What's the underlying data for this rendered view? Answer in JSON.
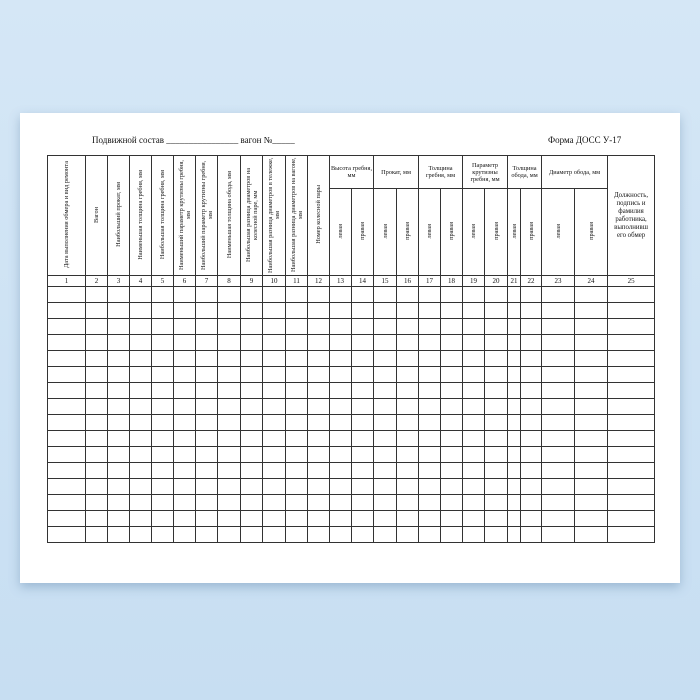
{
  "header": {
    "title": "Подвижной состав ________________ вагон №_____",
    "form_label": "Форма ДОСС У-17"
  },
  "columns": {
    "c1": "Дата выполнения обмера и вид ремонта",
    "c2": "Вагон",
    "c3": "Наибольший прокат, мм",
    "c4": "Наименьшая толщина гребня, мм",
    "c5": "Наибольшая толщина гребня, мм",
    "c6": "Наименьший параметр крутизны гребня, мм",
    "c7": "Наибольший параметр крутизны гребня, мм",
    "c8": "Наименьшая толщина обода, мм",
    "c9": "Наибольшая разница диаметров на колесной паре, мм",
    "c10": "Наибольшая разница диаметров в тележке, мм",
    "c11": "Наибольшая разница диаметров на вагоне, мм",
    "c12": "Номер колесной пары",
    "g1": "Высота гребня, мм",
    "g2": "Прокат, мм",
    "g3": "Толщина гребня, мм",
    "g4": "Параметр крутизны гребня, мм",
    "g5": "Толщина обода, мм",
    "g6": "Диаметр обода, мм",
    "left": "левая",
    "right": "правая",
    "c25": "Должность, подпись и фамилия работника, выполнивш его обмер"
  },
  "numbers": [
    "1",
    "2",
    "3",
    "4",
    "5",
    "6",
    "7",
    "8",
    "9",
    "10",
    "11",
    "12",
    "13",
    "14",
    "15",
    "16",
    "17",
    "18",
    "19",
    "20",
    "21",
    "22",
    "23",
    "24",
    "25"
  ]
}
